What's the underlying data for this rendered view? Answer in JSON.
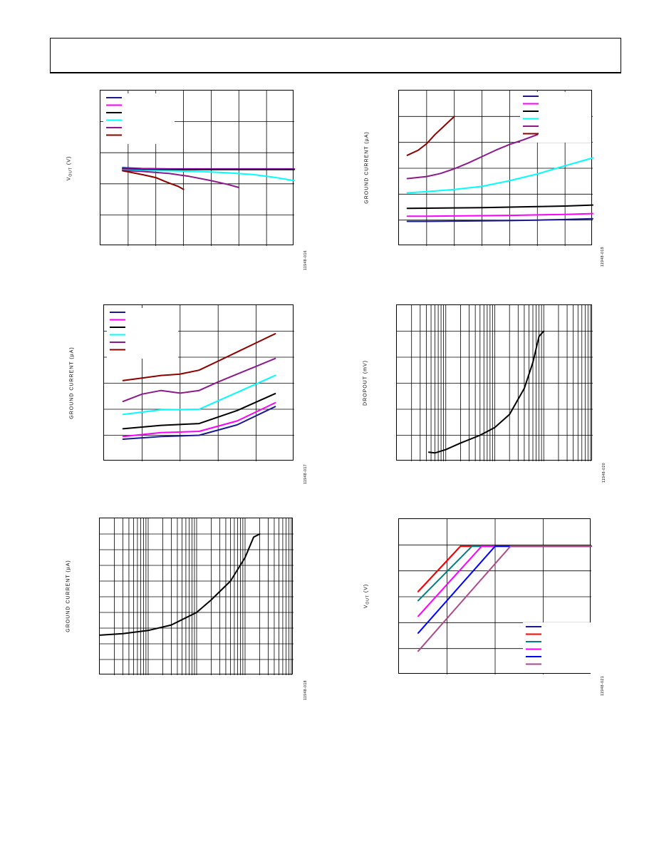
{
  "header": {
    "title": ""
  },
  "colors": {
    "navy": "#1a1a8c",
    "magenta": "#ff00ff",
    "black": "#000000",
    "cyan": "#00ffff",
    "purple": "#8b1a8b",
    "maroon": "#8b0000",
    "red": "#ff0000",
    "teal": "#008080",
    "blue": "#0000ff",
    "mauve": "#aa4a8a"
  },
  "chart_data": [
    {
      "id": "c1",
      "type": "line",
      "scale": "linear",
      "ylabel": "V OUT (V)",
      "ylabel_main": "V",
      "ylabel_sub": "OUT",
      "ylabel_tail": " (V)",
      "figid": "11948-016",
      "xlim": [
        0,
        7
      ],
      "ylim": [
        0,
        5
      ],
      "grid": {
        "x_divisions": 7,
        "y_divisions": 5
      },
      "legend": {
        "position": "top-left",
        "colors": [
          "navy",
          "magenta",
          "black",
          "cyan",
          "purple",
          "maroon"
        ]
      },
      "series": [
        {
          "color": "navy",
          "x": [
            0.8,
            1.5,
            2.5,
            3.5,
            4.5,
            5.5,
            6.5,
            7
          ],
          "y": [
            2.52,
            2.49,
            2.48,
            2.48,
            2.48,
            2.48,
            2.48,
            2.48
          ]
        },
        {
          "color": "magenta",
          "x": [
            0.8,
            1.5,
            2.5,
            3.5,
            4.5,
            5.5,
            6.5,
            7
          ],
          "y": [
            2.49,
            2.48,
            2.47,
            2.47,
            2.47,
            2.47,
            2.47,
            2.47
          ]
        },
        {
          "color": "black",
          "x": [
            0.8,
            1.5,
            2.5,
            3.5,
            4.5,
            5.5,
            6.5,
            7
          ],
          "y": [
            2.47,
            2.46,
            2.46,
            2.46,
            2.46,
            2.46,
            2.46,
            2.46
          ]
        },
        {
          "color": "cyan",
          "x": [
            0.8,
            1.5,
            2.5,
            3.5,
            4.5,
            5.5,
            6.2,
            7
          ],
          "y": [
            2.45,
            2.43,
            2.42,
            2.4,
            2.36,
            2.3,
            2.22,
            2.1
          ]
        },
        {
          "color": "purple",
          "x": [
            0.8,
            1.5,
            2.5,
            3.2,
            4,
            4.6,
            5
          ],
          "y": [
            2.43,
            2.4,
            2.33,
            2.24,
            2.1,
            1.98,
            1.88
          ]
        },
        {
          "color": "maroon",
          "x": [
            0.8,
            1.2,
            1.6,
            2,
            2.4,
            2.8,
            3
          ],
          "y": [
            2.42,
            2.35,
            2.28,
            2.2,
            2.05,
            1.92,
            1.82
          ]
        }
      ]
    },
    {
      "id": "c2",
      "type": "line",
      "scale": "linear",
      "ylabel": "GROUND CURRENT (µA)",
      "figid": "11948-019",
      "xlim": [
        0,
        7
      ],
      "ylim": [
        0,
        6
      ],
      "grid": {
        "x_divisions": 7,
        "y_divisions": 6
      },
      "legend": {
        "position": "top-right",
        "colors": [
          "navy",
          "magenta",
          "black",
          "cyan",
          "purple",
          "maroon"
        ]
      },
      "series": [
        {
          "color": "navy",
          "x": [
            0.3,
            1,
            2,
            3,
            4,
            5,
            6,
            7
          ],
          "y": [
            0.95,
            0.95,
            0.96,
            0.97,
            0.98,
            1.0,
            1.02,
            1.05
          ]
        },
        {
          "color": "magenta",
          "x": [
            0.3,
            1,
            2,
            3,
            4,
            5,
            6,
            7
          ],
          "y": [
            1.15,
            1.15,
            1.16,
            1.17,
            1.18,
            1.2,
            1.22,
            1.25
          ]
        },
        {
          "color": "black",
          "x": [
            0.3,
            1,
            2,
            3,
            4,
            5,
            6,
            7
          ],
          "y": [
            1.45,
            1.46,
            1.47,
            1.48,
            1.5,
            1.52,
            1.54,
            1.58
          ]
        },
        {
          "color": "cyan",
          "x": [
            0.3,
            1,
            2,
            3,
            4,
            5,
            6,
            7
          ],
          "y": [
            2.05,
            2.1,
            2.18,
            2.3,
            2.52,
            2.78,
            3.1,
            3.4
          ]
        },
        {
          "color": "purple",
          "x": [
            0.3,
            1,
            1.5,
            2,
            2.5,
            3,
            3.5,
            4,
            4.5,
            5
          ],
          "y": [
            2.6,
            2.68,
            2.8,
            2.98,
            3.2,
            3.45,
            3.7,
            3.92,
            4.1,
            4.3
          ]
        },
        {
          "color": "maroon",
          "x": [
            0.3,
            0.7,
            1,
            1.3,
            1.6,
            2
          ],
          "y": [
            3.5,
            3.7,
            3.95,
            4.3,
            4.6,
            5.0
          ]
        }
      ]
    },
    {
      "id": "c3",
      "type": "line",
      "scale": "linear",
      "ylabel": "GROUND CURRENT (µA)",
      "figid": "11948-017",
      "xlim": [
        0,
        5
      ],
      "ylim": [
        0,
        6
      ],
      "grid": {
        "x_divisions": 5,
        "y_divisions": 6
      },
      "legend": {
        "position": "top-left",
        "colors": [
          "navy",
          "magenta",
          "black",
          "cyan",
          "purple",
          "maroon"
        ]
      },
      "series": [
        {
          "color": "navy",
          "x": [
            0.5,
            1.5,
            2.5,
            3.5,
            4.5
          ],
          "y": [
            0.85,
            0.95,
            1.0,
            1.4,
            2.1
          ]
        },
        {
          "color": "magenta",
          "x": [
            0.5,
            1.5,
            2.5,
            3.5,
            4.5
          ],
          "y": [
            0.95,
            1.1,
            1.15,
            1.55,
            2.25
          ]
        },
        {
          "color": "black",
          "x": [
            0.5,
            1.5,
            2.5,
            3.5,
            4.5
          ],
          "y": [
            1.25,
            1.38,
            1.45,
            1.95,
            2.6
          ]
        },
        {
          "color": "cyan",
          "x": [
            0.5,
            1.5,
            2.5,
            3.5,
            4.5
          ],
          "y": [
            1.8,
            1.98,
            2.0,
            2.65,
            3.3
          ]
        },
        {
          "color": "purple",
          "x": [
            0.5,
            1,
            1.5,
            2,
            2.5,
            3,
            3.5,
            4,
            4.5
          ],
          "y": [
            2.3,
            2.58,
            2.72,
            2.62,
            2.72,
            3.05,
            3.35,
            3.65,
            3.95
          ]
        },
        {
          "color": "maroon",
          "x": [
            0.5,
            1,
            1.5,
            2,
            2.5,
            3,
            3.5,
            4,
            4.5
          ],
          "y": [
            3.1,
            3.2,
            3.3,
            3.35,
            3.5,
            3.85,
            4.2,
            4.55,
            4.9
          ]
        }
      ]
    },
    {
      "id": "c4",
      "type": "line",
      "scale": "semilogx",
      "ylabel": "DROPOUT (mV)",
      "figid": "11948-020",
      "xlim": [
        0.1,
        1000
      ],
      "ylim": [
        0,
        6
      ],
      "grid": {
        "x_decades": 4,
        "y_divisions": 6
      },
      "legend": null,
      "series": [
        {
          "color": "black",
          "x": [
            0.45,
            0.6,
            1,
            2,
            5,
            10,
            20,
            40,
            60,
            80,
            100
          ],
          "y": [
            0.35,
            0.32,
            0.45,
            0.7,
            1.0,
            1.3,
            1.8,
            2.8,
            3.8,
            4.8,
            5.0
          ]
        }
      ]
    },
    {
      "id": "c5",
      "type": "line",
      "scale": "semilogx",
      "ylabel": "GROUND CURRENT (µA)",
      "figid": "11948-018",
      "xlim": [
        0.1,
        1000
      ],
      "ylim": [
        0,
        10
      ],
      "grid": {
        "x_decades": 4,
        "y_divisions": 10
      },
      "legend": null,
      "series": [
        {
          "color": "black",
          "x": [
            0.1,
            0.3,
            1,
            3,
            10,
            20,
            50,
            100,
            150,
            200
          ],
          "y": [
            2.55,
            2.65,
            2.85,
            3.2,
            4.0,
            4.8,
            6.0,
            7.5,
            8.8,
            9.0
          ]
        }
      ]
    },
    {
      "id": "c6",
      "type": "line",
      "scale": "linear",
      "ylabel": "V OUT (V)",
      "ylabel_main": "V",
      "ylabel_sub": "OUT",
      "ylabel_tail": " (V)",
      "figid": "11948-021",
      "xlim": [
        0,
        5
      ],
      "ylim": [
        0,
        6
      ],
      "grid": {
        "x_divisions": 4,
        "y_divisions": 6
      },
      "legend": {
        "position": "bottom-right",
        "colors": [
          "navy",
          "red",
          "teal",
          "magenta",
          "blue",
          "mauve"
        ]
      },
      "series": [
        {
          "color": "navy",
          "x": [
            0.5,
            1.6,
            5
          ],
          "y": [
            3.2,
            4.95,
            4.95
          ]
        },
        {
          "color": "red",
          "x": [
            0.5,
            1.6,
            5
          ],
          "y": [
            3.2,
            4.95,
            4.95
          ]
        },
        {
          "color": "teal",
          "x": [
            0.5,
            1.9,
            5
          ],
          "y": [
            2.85,
            4.95,
            4.95
          ]
        },
        {
          "color": "magenta",
          "x": [
            0.5,
            2.15,
            5
          ],
          "y": [
            2.25,
            4.95,
            4.95
          ]
        },
        {
          "color": "blue",
          "x": [
            0.5,
            2.5,
            5
          ],
          "y": [
            1.6,
            4.95,
            4.95
          ]
        },
        {
          "color": "mauve",
          "x": [
            0.5,
            2.9,
            5
          ],
          "y": [
            0.9,
            4.95,
            4.95
          ]
        }
      ]
    }
  ]
}
